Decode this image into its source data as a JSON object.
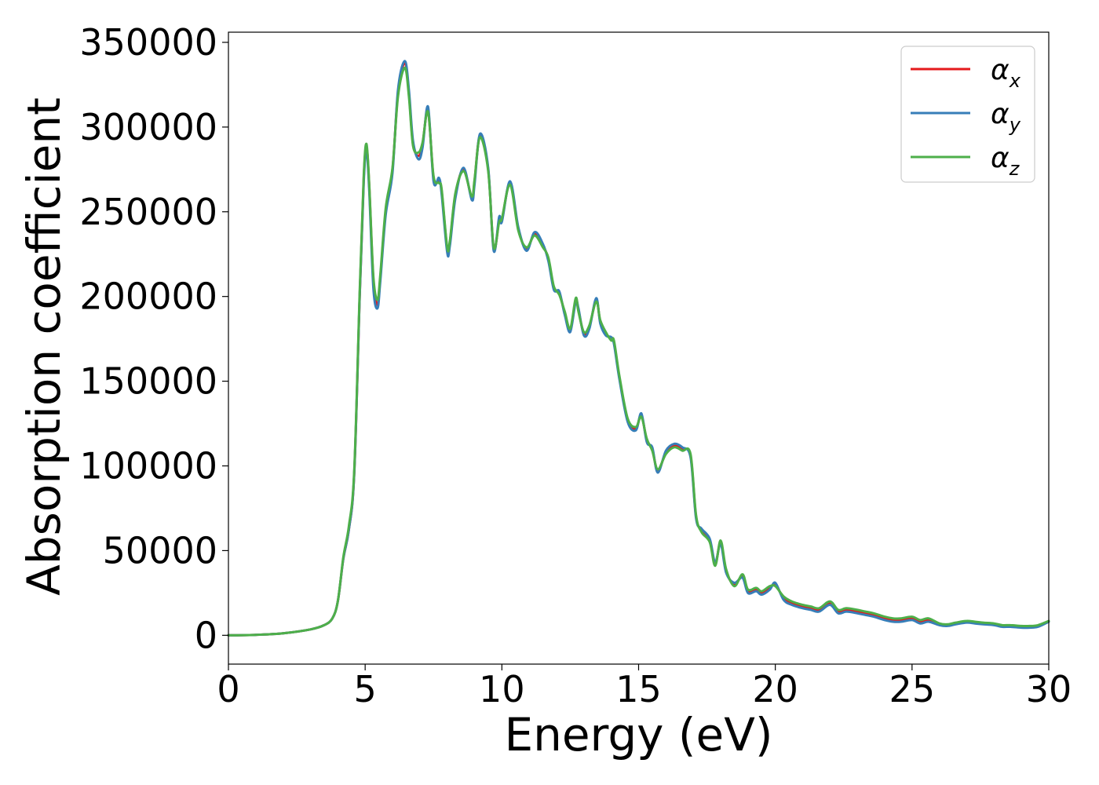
{
  "chart_data": {
    "type": "line",
    "title": "",
    "xlabel": "Energy (eV)",
    "ylabel": "Absorption coefficient",
    "xlim": [
      0,
      30
    ],
    "ylim": [
      -17000,
      356000
    ],
    "xticks": [
      0,
      5,
      10,
      15,
      20,
      25,
      30
    ],
    "xtick_labels": [
      "0",
      "5",
      "10",
      "15",
      "20",
      "25",
      "30"
    ],
    "yticks": [
      0,
      50000,
      100000,
      150000,
      200000,
      250000,
      300000,
      350000
    ],
    "ytick_labels": [
      "0",
      "50000",
      "100000",
      "150000",
      "200000",
      "250000",
      "300000",
      "350000"
    ],
    "grid": false,
    "legend_position": "top-right",
    "series": [
      {
        "name": "αx",
        "legend": {
          "symbol": "α",
          "sub": "x"
        },
        "color": "#e41a1c",
        "x": [
          0,
          1,
          2,
          3,
          3.5,
          3.8,
          4.0,
          4.2,
          4.4,
          4.6,
          4.8,
          4.95,
          5.05,
          5.15,
          5.3,
          5.45,
          5.55,
          5.75,
          6.0,
          6.2,
          6.45,
          6.6,
          6.75,
          6.95,
          7.1,
          7.3,
          7.5,
          7.7,
          7.8,
          8.0,
          8.1,
          8.3,
          8.6,
          8.9,
          9.0,
          9.2,
          9.5,
          9.7,
          9.9,
          10.0,
          10.3,
          10.6,
          10.9,
          11.2,
          11.5,
          11.7,
          11.9,
          12.1,
          12.3,
          12.5,
          12.7,
          12.8,
          13.0,
          13.2,
          13.45,
          13.6,
          13.8,
          14.0,
          14.1,
          14.3,
          14.6,
          14.9,
          15.1,
          15.3,
          15.5,
          15.7,
          16.0,
          16.3,
          16.6,
          16.9,
          17.1,
          17.3,
          17.6,
          17.8,
          18.0,
          18.2,
          18.5,
          18.8,
          19.0,
          19.3,
          19.5,
          19.8,
          20.0,
          20.3,
          20.6,
          21.0,
          21.3,
          21.6,
          22.0,
          22.3,
          22.6,
          23.0,
          23.3,
          23.6,
          24.0,
          24.3,
          24.6,
          25.0,
          25.3,
          25.6,
          26.0,
          26.3,
          26.6,
          27.0,
          27.3,
          27.6,
          28.0,
          28.3,
          28.6,
          29.0,
          29.3,
          29.6,
          30.0
        ],
        "y": [
          0,
          300,
          1200,
          3500,
          6000,
          10000,
          20000,
          45000,
          62000,
          95000,
          200000,
          270000,
          288000,
          265000,
          210000,
          195000,
          210000,
          250000,
          275000,
          320000,
          338000,
          320000,
          290000,
          283000,
          290000,
          310000,
          270000,
          268000,
          262000,
          228000,
          232000,
          260000,
          275000,
          258000,
          268000,
          295000,
          275000,
          228000,
          245000,
          245000,
          267000,
          240000,
          228000,
          237000,
          230000,
          222000,
          205000,
          202000,
          190000,
          180000,
          198000,
          192000,
          178000,
          182000,
          198000,
          185000,
          178000,
          175000,
          173000,
          152000,
          127000,
          122000,
          130000,
          115000,
          110000,
          97000,
          108000,
          112000,
          110000,
          106000,
          70000,
          62000,
          56000,
          42000,
          55000,
          38000,
          30000,
          35000,
          26000,
          27000,
          25000,
          28000,
          30000,
          22000,
          19000,
          17000,
          16000,
          15000,
          19000,
          14000,
          15000,
          14000,
          13000,
          12000,
          10000,
          9000,
          9000,
          10000,
          8000,
          9000,
          6500,
          6000,
          7000,
          8000,
          7500,
          7000,
          6500,
          5500,
          5500,
          5000,
          5000,
          5500,
          8000
        ]
      },
      {
        "name": "αy",
        "legend": {
          "symbol": "α",
          "sub": "y"
        },
        "color": "#377eb8",
        "x": [
          0,
          1,
          2,
          3,
          3.5,
          3.8,
          4.0,
          4.2,
          4.4,
          4.6,
          4.8,
          4.95,
          5.05,
          5.15,
          5.3,
          5.45,
          5.55,
          5.75,
          6.0,
          6.2,
          6.45,
          6.6,
          6.75,
          6.95,
          7.1,
          7.3,
          7.5,
          7.7,
          7.8,
          8.0,
          8.1,
          8.3,
          8.6,
          8.9,
          9.0,
          9.2,
          9.5,
          9.7,
          9.9,
          10.0,
          10.3,
          10.6,
          10.9,
          11.2,
          11.5,
          11.7,
          11.9,
          12.1,
          12.3,
          12.5,
          12.7,
          12.8,
          13.0,
          13.2,
          13.45,
          13.6,
          13.8,
          14.0,
          14.1,
          14.3,
          14.6,
          14.9,
          15.1,
          15.3,
          15.5,
          15.7,
          16.0,
          16.3,
          16.6,
          16.9,
          17.1,
          17.3,
          17.6,
          17.8,
          18.0,
          18.2,
          18.5,
          18.8,
          19.0,
          19.3,
          19.5,
          19.8,
          20.0,
          20.3,
          20.6,
          21.0,
          21.3,
          21.6,
          22.0,
          22.3,
          22.6,
          23.0,
          23.3,
          23.6,
          24.0,
          24.3,
          24.6,
          25.0,
          25.3,
          25.6,
          26.0,
          26.3,
          26.6,
          27.0,
          27.3,
          27.6,
          28.0,
          28.3,
          28.6,
          29.0,
          29.3,
          29.6,
          30.0
        ],
        "y": [
          0,
          300,
          1200,
          3500,
          6000,
          10000,
          20000,
          45000,
          62000,
          95000,
          200000,
          268000,
          286000,
          262000,
          205000,
          193000,
          208000,
          248000,
          273000,
          322000,
          339000,
          322000,
          292000,
          281000,
          288000,
          312000,
          268000,
          270000,
          260000,
          226000,
          230000,
          258000,
          276000,
          257000,
          266000,
          296000,
          276000,
          227000,
          247000,
          244000,
          268000,
          241000,
          227000,
          238000,
          231000,
          221000,
          204000,
          203000,
          189000,
          179000,
          197000,
          193000,
          177000,
          181000,
          199000,
          184000,
          177000,
          176000,
          172000,
          151000,
          126000,
          121000,
          131000,
          114000,
          111000,
          96000,
          109000,
          113000,
          111000,
          105000,
          69000,
          63000,
          57000,
          43000,
          54000,
          37000,
          31000,
          34000,
          25000,
          26000,
          24000,
          27000,
          31000,
          21000,
          18000,
          16000,
          15000,
          14000,
          18000,
          13000,
          14000,
          13000,
          12000,
          11000,
          9000,
          8000,
          8000,
          9000,
          7000,
          8000,
          6000,
          5500,
          6500,
          7500,
          7000,
          6500,
          6000,
          5000,
          5000,
          4500,
          4500,
          5000,
          8000
        ]
      },
      {
        "name": "αz",
        "legend": {
          "symbol": "α",
          "sub": "z"
        },
        "color": "#4daf4a",
        "x": [
          0,
          1,
          2,
          3,
          3.5,
          3.8,
          4.0,
          4.2,
          4.4,
          4.6,
          4.8,
          4.95,
          5.05,
          5.15,
          5.3,
          5.45,
          5.55,
          5.75,
          6.0,
          6.2,
          6.45,
          6.6,
          6.75,
          6.95,
          7.1,
          7.3,
          7.5,
          7.7,
          7.8,
          8.0,
          8.1,
          8.3,
          8.6,
          8.9,
          9.0,
          9.2,
          9.5,
          9.7,
          9.9,
          10.0,
          10.3,
          10.6,
          10.9,
          11.2,
          11.5,
          11.7,
          11.9,
          12.1,
          12.3,
          12.5,
          12.7,
          12.8,
          13.0,
          13.2,
          13.45,
          13.6,
          13.8,
          14.0,
          14.1,
          14.3,
          14.6,
          14.9,
          15.1,
          15.3,
          15.5,
          15.7,
          16.0,
          16.3,
          16.6,
          16.9,
          17.1,
          17.3,
          17.6,
          17.8,
          18.0,
          18.2,
          18.5,
          18.8,
          19.0,
          19.3,
          19.5,
          19.8,
          20.0,
          20.3,
          20.6,
          21.0,
          21.3,
          21.6,
          22.0,
          22.3,
          22.6,
          23.0,
          23.3,
          23.6,
          24.0,
          24.3,
          24.6,
          25.0,
          25.3,
          25.6,
          26.0,
          26.3,
          26.6,
          27.0,
          27.3,
          27.6,
          28.0,
          28.3,
          28.6,
          29.0,
          29.3,
          29.6,
          30.0
        ],
        "y": [
          0,
          300,
          1200,
          3500,
          6000,
          10000,
          20000,
          46000,
          64000,
          97000,
          203000,
          272000,
          290000,
          266000,
          212000,
          198000,
          212000,
          252000,
          276000,
          318000,
          335000,
          318000,
          289000,
          285000,
          291000,
          309000,
          271000,
          267000,
          263000,
          229000,
          233000,
          261000,
          274000,
          259000,
          269000,
          294000,
          274000,
          229000,
          244000,
          246000,
          266000,
          239000,
          229000,
          236000,
          229000,
          223000,
          206000,
          201000,
          191000,
          181000,
          199000,
          191000,
          179000,
          183000,
          197000,
          186000,
          179000,
          174000,
          174000,
          153000,
          128000,
          123000,
          129000,
          116000,
          109000,
          98000,
          107000,
          111000,
          109000,
          107000,
          71000,
          61000,
          55000,
          41000,
          56000,
          39000,
          29000,
          36000,
          27000,
          28000,
          26000,
          29000,
          29000,
          23000,
          20000,
          18000,
          17000,
          16000,
          20000,
          15000,
          16000,
          15000,
          14000,
          13000,
          11000,
          10000,
          10000,
          11000,
          9000,
          10000,
          7000,
          6500,
          7500,
          8500,
          8000,
          7500,
          7000,
          6000,
          6000,
          5500,
          5500,
          6000,
          8500
        ]
      }
    ]
  }
}
